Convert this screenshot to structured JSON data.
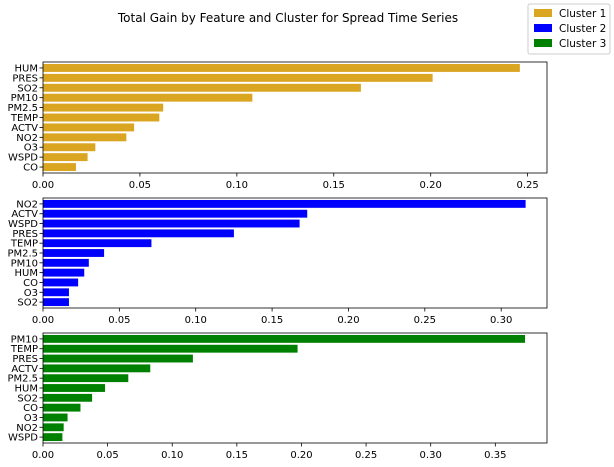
{
  "figure": {
    "title": "Total Gain by Feature and Cluster for Spread Time Series"
  },
  "legend": {
    "placement": "top-right",
    "entries": [
      {
        "label": "Cluster 1",
        "color": "#DAA520"
      },
      {
        "label": "Cluster 2",
        "color": "#0000FF"
      },
      {
        "label": "Cluster 3",
        "color": "#008000"
      }
    ]
  },
  "chart_data": [
    {
      "type": "bar",
      "orientation": "horizontal",
      "series_name": "Cluster 1",
      "color": "#DAA520",
      "xlim": [
        0,
        0.26
      ],
      "xticks": [
        0.0,
        0.05,
        0.1,
        0.15,
        0.2,
        0.25
      ],
      "xtick_labels": [
        "0.00",
        "0.05",
        "0.10",
        "0.15",
        "0.20",
        "0.25"
      ],
      "categories": [
        "HUM",
        "PRES",
        "SO2",
        "PM10",
        "PM2.5",
        "TEMP",
        "ACTV",
        "NO2",
        "O3",
        "WSPD",
        "CO"
      ],
      "values": [
        0.246,
        0.201,
        0.164,
        0.108,
        0.062,
        0.06,
        0.047,
        0.043,
        0.027,
        0.023,
        0.017
      ]
    },
    {
      "type": "bar",
      "orientation": "horizontal",
      "series_name": "Cluster 2",
      "color": "#0000FF",
      "xlim": [
        0,
        0.33
      ],
      "xticks": [
        0.0,
        0.05,
        0.1,
        0.15,
        0.2,
        0.25,
        0.3
      ],
      "xtick_labels": [
        "0.00",
        "0.05",
        "0.10",
        "0.15",
        "0.20",
        "0.25",
        "0.30"
      ],
      "categories": [
        "NO2",
        "ACTV",
        "WSPD",
        "PRES",
        "TEMP",
        "PM2.5",
        "PM10",
        "HUM",
        "CO",
        "O3",
        "SO2"
      ],
      "values": [
        0.316,
        0.173,
        0.168,
        0.125,
        0.071,
        0.04,
        0.03,
        0.027,
        0.023,
        0.017,
        0.017
      ]
    },
    {
      "type": "bar",
      "orientation": "horizontal",
      "series_name": "Cluster 3",
      "color": "#008000",
      "xlim": [
        0,
        0.39
      ],
      "xticks": [
        0.0,
        0.05,
        0.1,
        0.15,
        0.2,
        0.25,
        0.3,
        0.35
      ],
      "xtick_labels": [
        "0.00",
        "0.05",
        "0.10",
        "0.15",
        "0.20",
        "0.25",
        "0.30",
        "0.35"
      ],
      "categories": [
        "PM10",
        "TEMP",
        "PRES",
        "ACTV",
        "PM2.5",
        "HUM",
        "SO2",
        "CO",
        "O3",
        "NO2",
        "WSPD"
      ],
      "values": [
        0.373,
        0.197,
        0.116,
        0.083,
        0.066,
        0.048,
        0.038,
        0.029,
        0.019,
        0.016,
        0.015
      ]
    }
  ]
}
